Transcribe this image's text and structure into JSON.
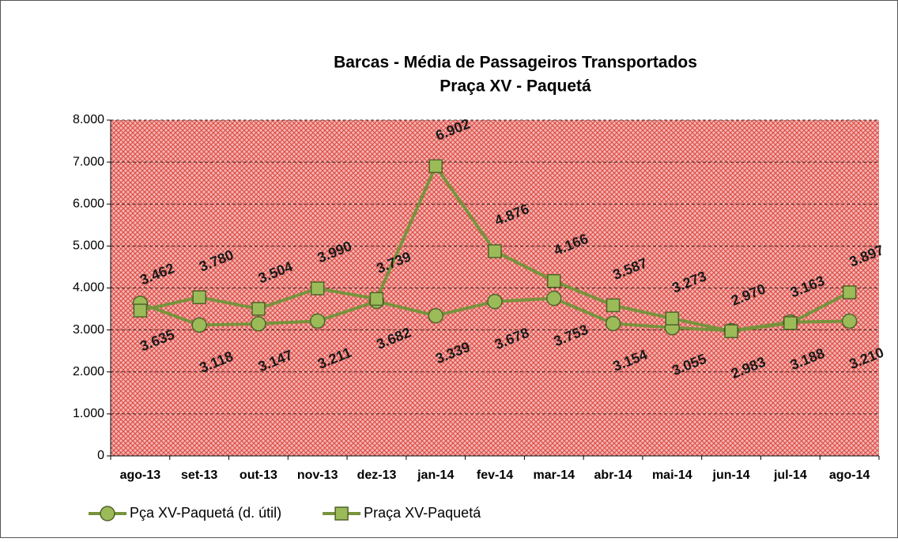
{
  "chart_data": {
    "type": "line",
    "title": "Barcas - Média de Passageiros Transportados",
    "subtitle": "Praça XV - Paquetá",
    "categories": [
      "ago-13",
      "set-13",
      "out-13",
      "nov-13",
      "dez-13",
      "jan-14",
      "fev-14",
      "mar-14",
      "abr-14",
      "mai-14",
      "jun-14",
      "jul-14",
      "ago-14"
    ],
    "series": [
      {
        "name": "Pça XV-Paquetá (d. útil)",
        "color": "#77933c",
        "marker": "circle",
        "values": [
          3635,
          3118,
          3147,
          3211,
          3682,
          3339,
          3678,
          3753,
          3154,
          3055,
          2983,
          3188,
          3210
        ],
        "value_labels": [
          "3.635",
          "3.118",
          "3.147",
          "3.211",
          "3.682",
          "3.339",
          "3.678",
          "3.753",
          "3.154",
          "3.055",
          "2.983",
          "3.188",
          "3.210"
        ]
      },
      {
        "name": "Praça XV-Paquetá",
        "color": "#77933c",
        "marker": "square",
        "values": [
          3462,
          3780,
          3504,
          3990,
          3739,
          6902,
          4876,
          4166,
          3587,
          3273,
          2970,
          3163,
          3897
        ],
        "value_labels": [
          "3.462",
          "3.780",
          "3.504",
          "3.990",
          "3.739",
          "6.902",
          "4.876",
          "4.166",
          "3.587",
          "3.273",
          "2.970",
          "3.163",
          "3.897"
        ]
      }
    ],
    "ylim": [
      0,
      8000
    ],
    "yticks": [
      0,
      {
        "value": 1000,
        "label": "1.000"
      },
      {
        "value": 2000,
        "label": "2.000"
      },
      {
        "value": 3000,
        "label": "3.000"
      },
      {
        "value": 4000,
        "label": "4.000"
      },
      {
        "value": 5000,
        "label": "5.000"
      },
      {
        "value": 6000,
        "label": "6.000"
      },
      {
        "value": 7000,
        "label": "7.000"
      },
      {
        "value": 8000,
        "label": "8.000"
      }
    ],
    "grid": true,
    "legend": "bottom"
  }
}
